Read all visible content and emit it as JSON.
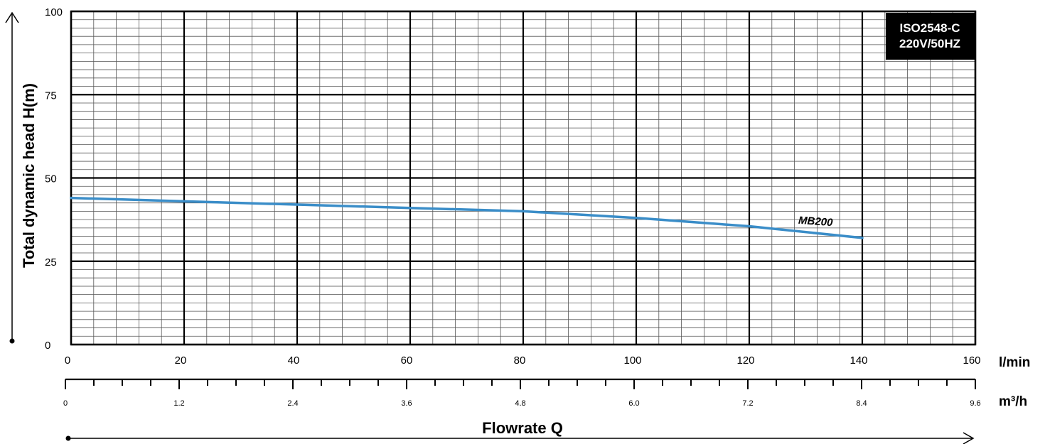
{
  "chart_data": {
    "type": "line",
    "ylabel": "Total dynamic head H(m)",
    "xlabel": "Flowrate Q",
    "x_unit_primary": "l/min",
    "x_unit_secondary": "m³/h",
    "xlim": [
      0,
      160
    ],
    "ylim": [
      0,
      100
    ],
    "x_ticks": [
      0,
      20,
      40,
      60,
      80,
      100,
      120,
      140,
      160
    ],
    "x_tick_labels": [
      "0",
      "20",
      "40",
      "60",
      "80",
      "100",
      "120",
      "140",
      "160"
    ],
    "x2_ticks": [
      0,
      1.2,
      2.4,
      3.6,
      4.8,
      6.0,
      7.2,
      8.4,
      9.6
    ],
    "x2_tick_labels": [
      "0",
      "1.2",
      "2.4",
      "3.6",
      "4.8",
      "6.0",
      "7.2",
      "8.4",
      "9.6"
    ],
    "y_ticks": [
      0,
      25,
      50,
      75,
      100
    ],
    "y_tick_labels": [
      "0",
      "25",
      "50",
      "75",
      "100"
    ],
    "grid": true,
    "info_box": [
      "ISO2548-C",
      "220V/50HZ"
    ],
    "series": [
      {
        "name": "MB200",
        "color": "#3a8dc8",
        "x": [
          0,
          20,
          40,
          60,
          80,
          100,
          120,
          140
        ],
        "y": [
          44,
          43,
          42,
          41,
          40,
          38,
          35.5,
          32
        ]
      }
    ]
  }
}
